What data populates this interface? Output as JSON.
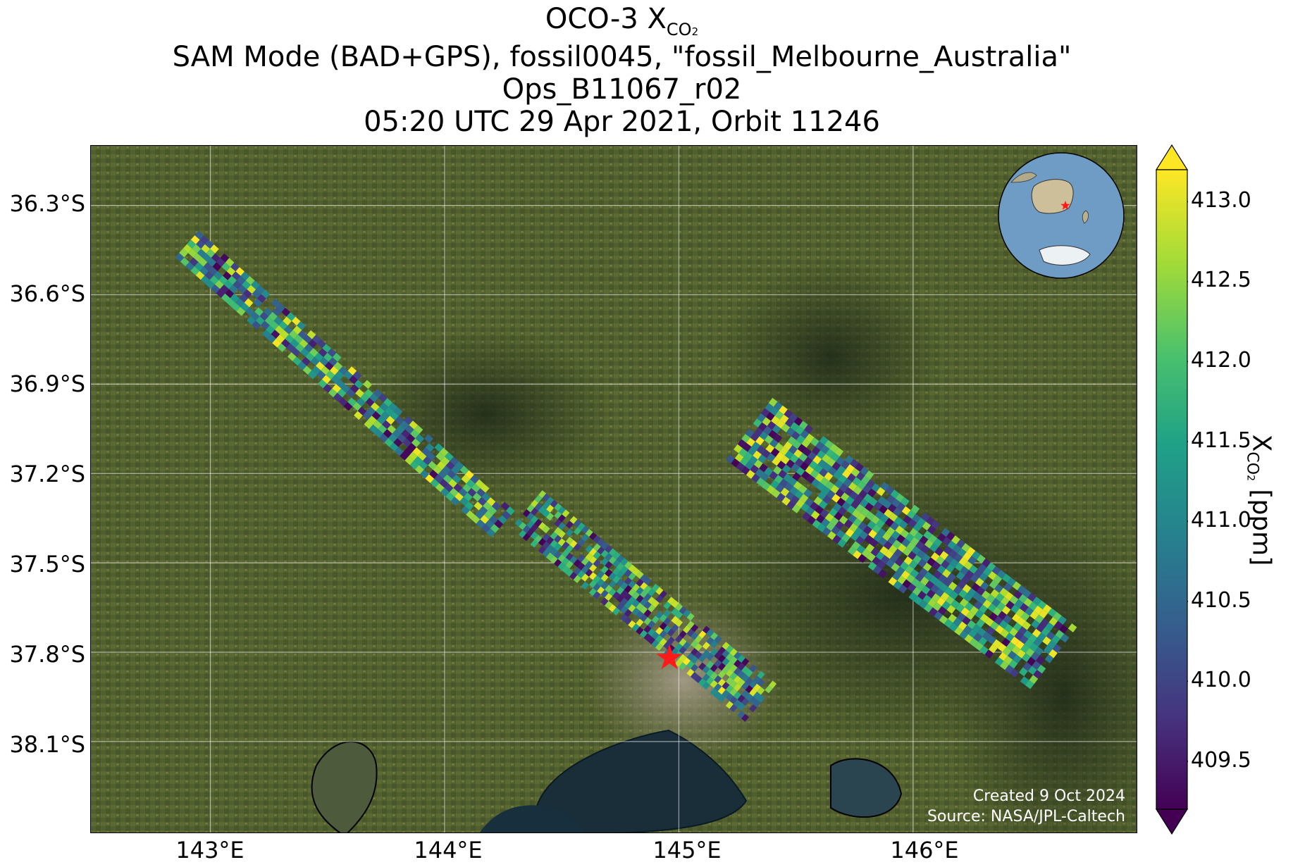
{
  "title": {
    "line1_prefix": "OCO-3 X",
    "line1_sub": "CO",
    "line1_sub2": "2",
    "line2": "SAM Mode (BAD+GPS), fossil0045, \"fossil_Melbourne_Australia\"",
    "line3": "Ops_B11067_r02",
    "line4": "05:20 UTC 29 Apr 2021, Orbit 11246"
  },
  "map": {
    "lat_ticks": [
      "36.3°S",
      "36.6°S",
      "36.9°S",
      "37.2°S",
      "37.5°S",
      "37.8°S",
      "38.1°S"
    ],
    "lon_ticks": [
      "143°E",
      "144°E",
      "145°E",
      "146°E"
    ],
    "lat_values": [
      -36.3,
      -36.6,
      -36.9,
      -37.2,
      -37.5,
      -37.8,
      -38.1
    ],
    "lon_values": [
      143,
      144,
      145,
      146
    ],
    "extent": {
      "lon_min": 142.49,
      "lon_max": 146.96,
      "lat_min": -38.41,
      "lat_max": -36.1
    },
    "grid": true,
    "target_marker": {
      "lon": 144.96,
      "lat": -37.82,
      "color": "#ff1a1a",
      "symbol": "star"
    },
    "credits_line1": "Created 9 Oct 2024",
    "credits_line2": "Source: NASA/JPL-Caltech",
    "inset": "globe-locator",
    "colormap": "viridis"
  },
  "colorbar": {
    "ticks": [
      "409.5",
      "410.0",
      "410.5",
      "411.0",
      "411.5",
      "412.0",
      "412.5",
      "413.0"
    ],
    "tick_values": [
      409.5,
      410.0,
      410.5,
      411.0,
      411.5,
      412.0,
      412.5,
      413.0
    ],
    "range": [
      409.2,
      413.2
    ],
    "label_prefix": "X",
    "label_sub": "CO",
    "label_sub2": "2",
    "label_suffix": " [ppm]",
    "extend": "both"
  }
}
